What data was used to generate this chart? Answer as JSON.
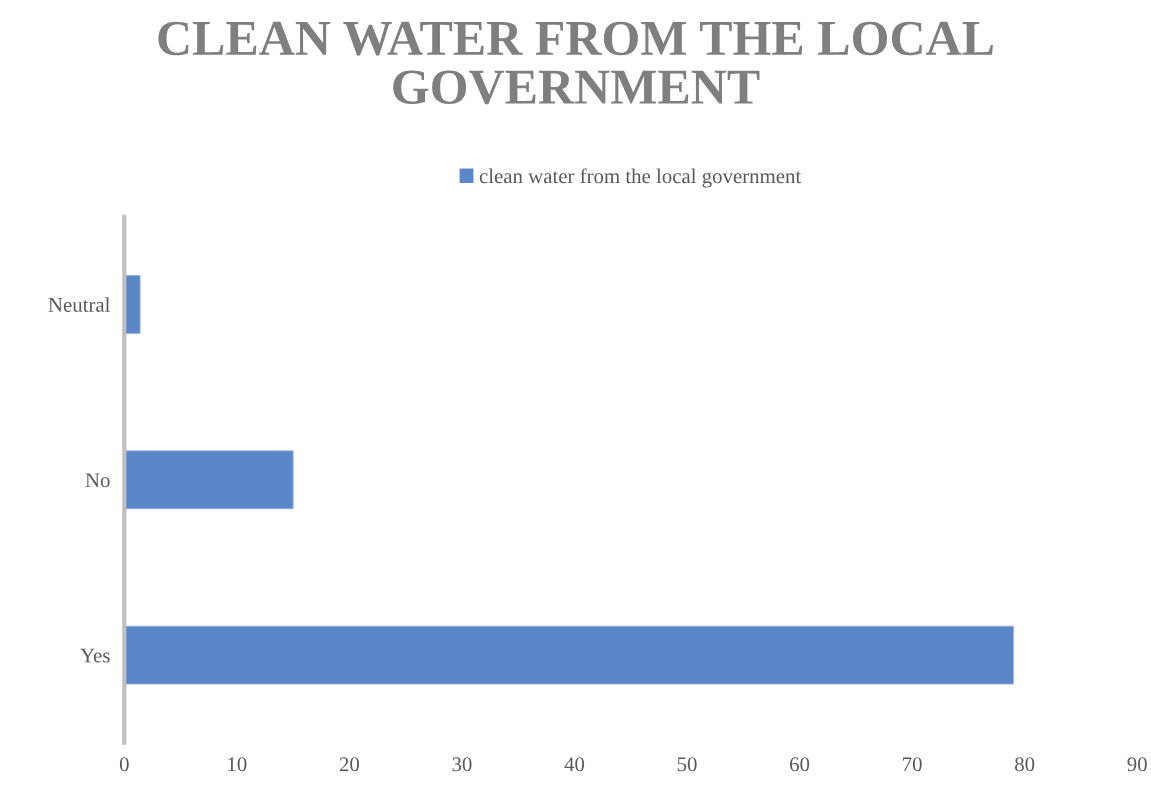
{
  "chart_data": {
    "type": "bar",
    "orientation": "horizontal",
    "title": "CLEAN WATER FROM THE LOCAL GOVERNMENT",
    "categories": [
      "Neutral",
      "No",
      "Yes"
    ],
    "series": [
      {
        "name": "clean water from the local government",
        "color": "#5b87c9",
        "values": [
          1.4,
          15,
          79
        ]
      }
    ],
    "xlim": [
      0,
      90
    ],
    "xticks": [
      0,
      10,
      20,
      30,
      40,
      50,
      60,
      70,
      80,
      90
    ],
    "grid": false,
    "legend": "top"
  }
}
